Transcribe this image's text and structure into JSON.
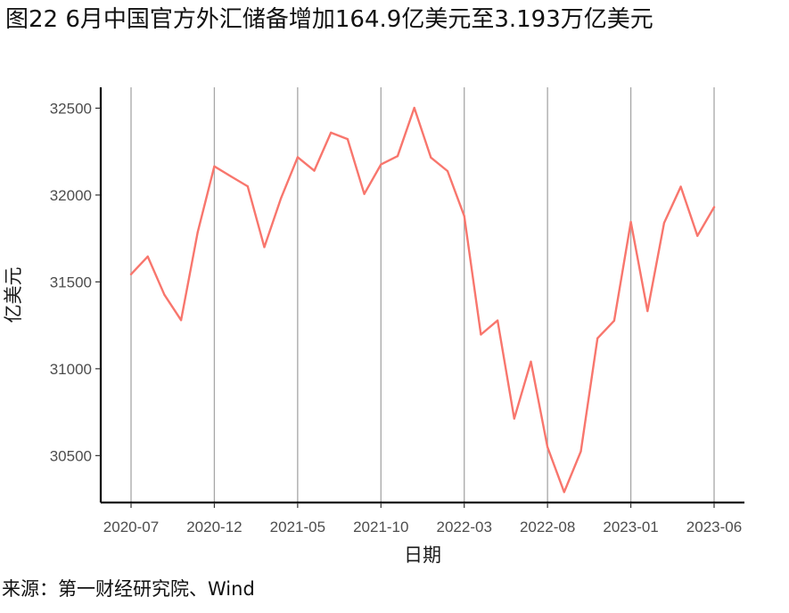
{
  "header": {
    "title": "图22 6月中国官方外汇储备增加164.9亿美元至3.193万亿美元"
  },
  "footer": {
    "source": "来源：第一财经研究院、Wind"
  },
  "chart_data": {
    "type": "line",
    "title": "图22 6月中国官方外汇储备增加164.9亿美元至3.193万亿美元",
    "xlabel": "日期",
    "ylabel": "亿美元",
    "x": [
      "2020-07",
      "2020-08",
      "2020-09",
      "2020-10",
      "2020-11",
      "2020-12",
      "2021-01",
      "2021-02",
      "2021-03",
      "2021-04",
      "2021-05",
      "2021-06",
      "2021-07",
      "2021-08",
      "2021-09",
      "2021-10",
      "2021-11",
      "2021-12",
      "2022-01",
      "2022-02",
      "2022-03",
      "2022-04",
      "2022-05",
      "2022-06",
      "2022-07",
      "2022-08",
      "2022-09",
      "2022-10",
      "2022-11",
      "2022-12",
      "2023-01",
      "2023-02",
      "2023-03",
      "2023-04",
      "2023-05",
      "2023-06"
    ],
    "x_ticks": [
      "2020-07",
      "2020-12",
      "2021-05",
      "2021-10",
      "2022-03",
      "2022-08",
      "2023-01",
      "2023-06"
    ],
    "series": [
      {
        "values": [
          31544,
          31646,
          31426,
          31280,
          31785,
          32165,
          32107,
          32050,
          31700,
          31982,
          32218,
          32140,
          32359,
          32322,
          32006,
          32176,
          32224,
          32502,
          32216,
          32138,
          31880,
          31197,
          31278,
          30713,
          31041,
          30549,
          30290,
          30524,
          31175,
          31277,
          31845,
          31332,
          31839,
          32048,
          31765,
          31930
        ],
        "color": "#F8766D"
      }
    ],
    "y_ticks": [
      30500,
      31000,
      31500,
      32000,
      32500
    ],
    "ylim": [
      30230,
      32620
    ],
    "grid": "vertical major gridlines at x ticks only",
    "legend": "none"
  }
}
